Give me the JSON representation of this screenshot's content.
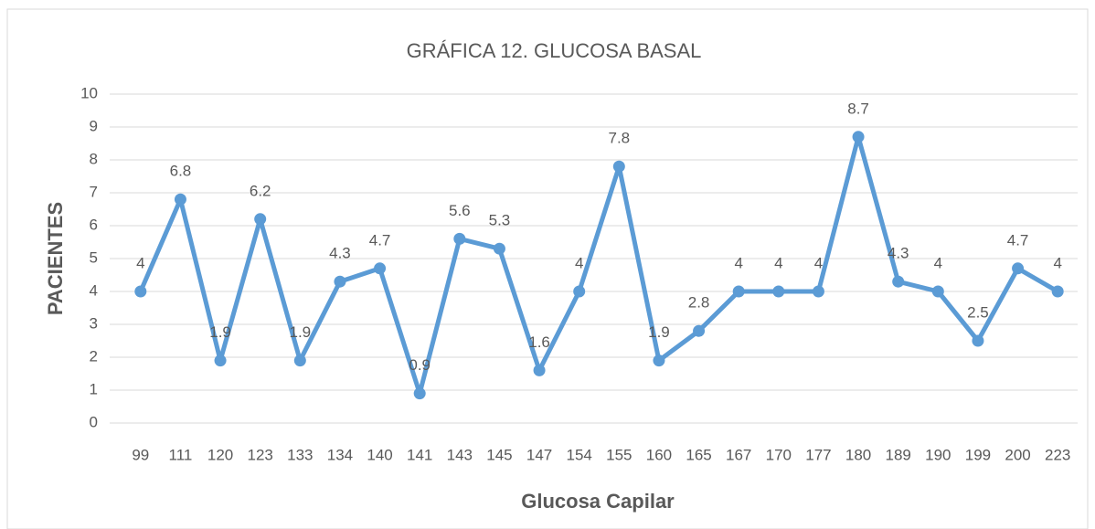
{
  "chart_data": {
    "type": "line",
    "title": "GRÁFICA 12. GLUCOSA BASAL",
    "x_label": "Glucosa Capilar",
    "y_label": "PACIENTES",
    "categories": [
      "99",
      "111",
      "120",
      "123",
      "133",
      "134",
      "140",
      "141",
      "143",
      "145",
      "147",
      "154",
      "155",
      "160",
      "165",
      "167",
      "170",
      "177",
      "180",
      "189",
      "190",
      "199",
      "200",
      "223"
    ],
    "series": [
      {
        "name": "PACIENTES",
        "color": "#5b9bd5",
        "values": [
          4,
          6.8,
          1.9,
          6.2,
          1.9,
          4.3,
          4.7,
          0.9,
          5.6,
          5.3,
          1.6,
          4,
          7.8,
          1.9,
          2.8,
          4,
          4,
          4,
          8.7,
          4.3,
          4,
          2.5,
          4.7,
          4
        ]
      }
    ],
    "ylim": [
      0,
      10
    ],
    "yticks": [
      0,
      1,
      2,
      3,
      4,
      5,
      6,
      7,
      8,
      9,
      10
    ],
    "grid": true,
    "data_labels": true
  }
}
